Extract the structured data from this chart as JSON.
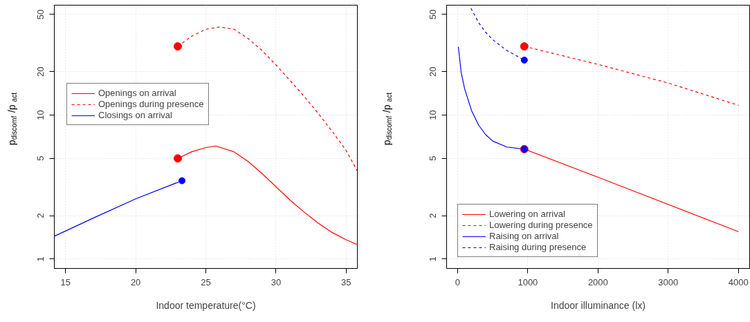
{
  "chart_data": [
    {
      "type": "line",
      "xlabel": "Indoor temperature(°C)",
      "ylabel": "p$_{discomf}$/p$_{act}$",
      "log": "y",
      "grid": true,
      "legend": "left",
      "xlim": [
        14.2,
        35.8
      ],
      "ylim": [
        0.86,
        58
      ],
      "xticks": [
        15,
        20,
        25,
        30,
        35
      ],
      "yticks": [
        1,
        2,
        5,
        10,
        20,
        50
      ],
      "series": [
        {
          "type": "line",
          "name": "Openings on arrival",
          "color": "#ff0000",
          "line_style": "solid",
          "x": [
            23,
            24,
            25,
            25.7,
            27,
            28,
            29,
            30,
            31,
            32,
            33,
            34,
            35,
            35.8
          ],
          "values": [
            5,
            5.56,
            5.95,
            6.1,
            5.56,
            4.77,
            3.93,
            3.18,
            2.57,
            2.12,
            1.78,
            1.53,
            1.36,
            1.26
          ]
        },
        {
          "type": "line",
          "name": "Openings during presence",
          "color": "#ff0000",
          "line_style": "dashed",
          "x": [
            23,
            24,
            25,
            26,
            27,
            28,
            29,
            30,
            31,
            32,
            33,
            34,
            35,
            35.8
          ],
          "values": [
            30,
            35.4,
            39.5,
            40.9,
            39.5,
            34.1,
            28.1,
            22.3,
            17.4,
            13.5,
            10.3,
            7.72,
            5.67,
            4.09
          ]
        },
        {
          "type": "line",
          "name": "Closings on arrival",
          "color": "#0000ff",
          "line_style": "solid",
          "x": [
            14.2,
            17,
            20,
            23.3
          ],
          "values": [
            1.44,
            1.93,
            2.62,
            3.5
          ]
        },
        {
          "type": "scatter",
          "color": "#ff0000",
          "marker": "circle",
          "x": [
            23,
            23
          ],
          "values": [
            5,
            30
          ]
        },
        {
          "type": "scatter",
          "color": "#0000ff",
          "marker": "circle",
          "x": [
            23.3
          ],
          "values": [
            3.5
          ]
        }
      ]
    },
    {
      "type": "line",
      "xlabel": "Indoor illuminance (lx)",
      "ylabel": "p$_{discomf}$/p$_{act}$",
      "log": "y",
      "grid": true,
      "legend": "bottom left",
      "xlim": [
        -157,
        4160
      ],
      "ylim": [
        0.86,
        58
      ],
      "xticks": [
        0,
        1000,
        2000,
        3000,
        4000
      ],
      "yticks": [
        1,
        2,
        5,
        10,
        20,
        50
      ],
      "series": [
        {
          "type": "line",
          "name": "Lowering on arrival",
          "color": "#ff0000",
          "line_style": "solid",
          "x": [
            950,
            2000,
            4000
          ],
          "values": [
            5.8,
            3.7,
            1.55
          ]
        },
        {
          "type": "line",
          "name": "Lowering during presence",
          "color": "#ff0000",
          "line_style": "dashed",
          "x": [
            950,
            2000,
            3000,
            4000
          ],
          "values": [
            30,
            22.5,
            16.7,
            11.7
          ]
        },
        {
          "type": "line",
          "name": "Raising on arrival",
          "color": "#0000ff",
          "line_style": "solid",
          "x": [
            10,
            50,
            100,
            200,
            300,
            400,
            500,
            700,
            950
          ],
          "values": [
            29.8,
            19.9,
            15.2,
            10.7,
            8.5,
            7.3,
            6.6,
            6.0,
            5.8
          ]
        },
        {
          "type": "line",
          "name": "Raising during presence",
          "color": "#0000ff",
          "line_style": "dashed",
          "x": [
            190,
            300,
            400,
            500,
            700,
            950
          ],
          "values": [
            55.2,
            43.8,
            37.6,
            33.4,
            28.1,
            24.1
          ]
        },
        {
          "type": "scatter",
          "color": "#ff0000",
          "marker": "circle",
          "x": [
            950,
            950
          ],
          "values": [
            30,
            5.8
          ]
        },
        {
          "type": "scatter",
          "color": "#0000ff",
          "marker": "circle",
          "x": [
            950,
            950
          ],
          "values": [
            24.1,
            5.8
          ]
        }
      ]
    }
  ]
}
